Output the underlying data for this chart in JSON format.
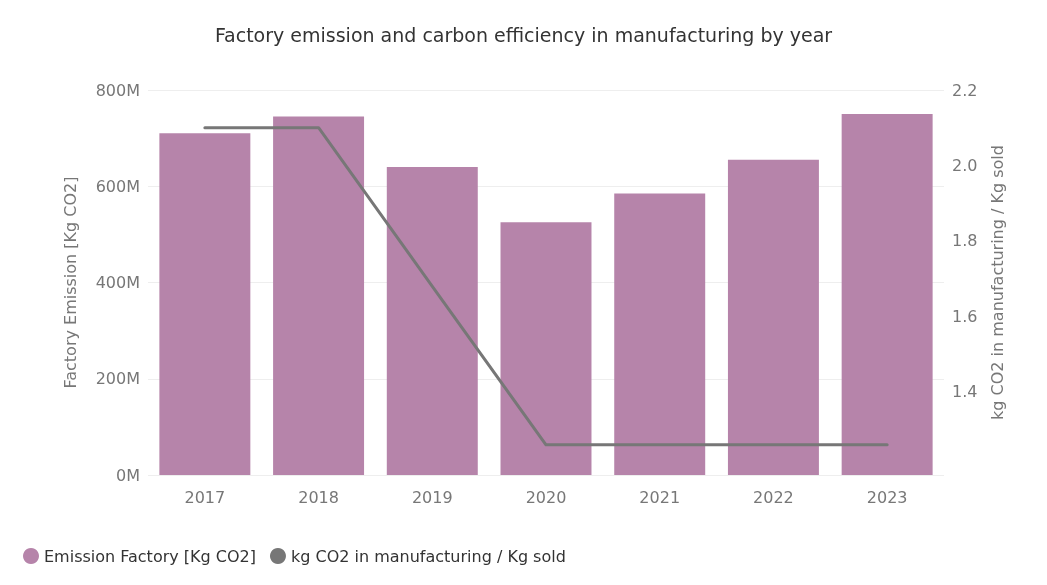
{
  "chart_data": {
    "type": "bar",
    "title": "Factory emission and carbon efficiency in manufacturing by year",
    "ylabel": "Factory Emission [Kg CO2]",
    "y2label": "kg CO2 in manufacturing / Kg sold",
    "categories": [
      "2017",
      "2018",
      "2019",
      "2020",
      "2021",
      "2022",
      "2023"
    ],
    "series": [
      {
        "name": "Emission Factory [Kg CO2]",
        "color": "#b684aa",
        "values": [
          710000000,
          745000000,
          640000000,
          525000000,
          585000000,
          655000000,
          750000000
        ]
      },
      {
        "name": "kg CO2 in manufacturing / Kg sold",
        "type": "line",
        "axis": "y2",
        "color": "#777777",
        "values": [
          2.1,
          2.1,
          1.68,
          1.26,
          1.26,
          1.26,
          1.26
        ]
      }
    ],
    "ylim": [
      0,
      800000000
    ],
    "yticks": [
      {
        "value": 0,
        "label": "0M"
      },
      {
        "value": 200000000,
        "label": "200M"
      },
      {
        "value": 400000000,
        "label": "400M"
      },
      {
        "value": 600000000,
        "label": "600M"
      },
      {
        "value": 800000000,
        "label": "800M"
      }
    ],
    "y2lim": [
      1.18,
      2.2
    ],
    "y2ticks": [
      {
        "value": 1.4,
        "label": "1.4"
      },
      {
        "value": 1.6,
        "label": "1.6"
      },
      {
        "value": 1.8,
        "label": "1.8"
      },
      {
        "value": 2.0,
        "label": "2.0"
      },
      {
        "value": 2.2,
        "label": "2.2"
      }
    ],
    "grid": "y",
    "legend": "bottom left",
    "marker": "none"
  }
}
